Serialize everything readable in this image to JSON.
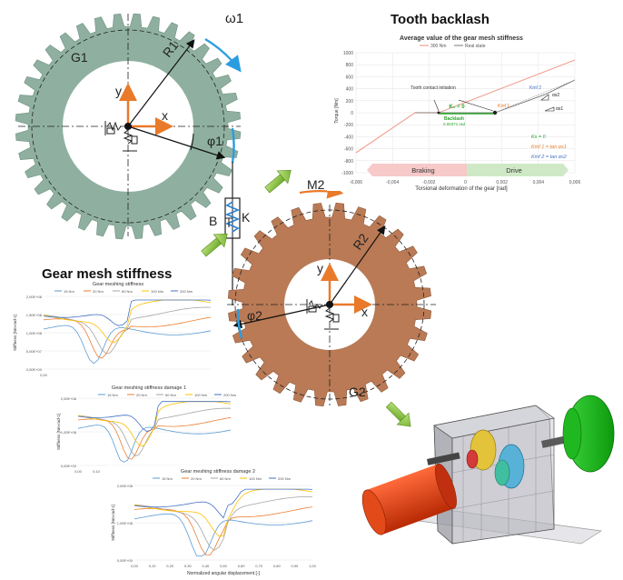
{
  "titles": {
    "tooth_backlash": "Tooth backlash",
    "gear_mesh_stiffness": "Gear mesh stiffness"
  },
  "gear1": {
    "name": "G1",
    "omega": "ω1",
    "radius": "R1",
    "phi": "φ1",
    "axis_x": "x",
    "axis_y": "y",
    "color": "#8fb0a0"
  },
  "gear2": {
    "name": "G2",
    "moment": "M2",
    "radius": "R2",
    "phi": "φ2",
    "axis_x": "x",
    "axis_y": "y",
    "color": "#b97a55"
  },
  "coupling": {
    "damping_label": "B",
    "stiffness_label": "K"
  },
  "backlash_chart": {
    "title": "Average value of the gear mesh stiffness",
    "legend": [
      "300 Nm",
      "Real state"
    ],
    "ylabel": "Torque [Nm]",
    "xlabel": "Torsional deformation of the gear [rad]",
    "yticks": [
      "1000",
      "800",
      "600",
      "400",
      "200",
      "0",
      "-200",
      "-400",
      "-600",
      "-800",
      "-1000"
    ],
    "xticks": [
      "-0,006",
      "-0,004",
      "-0,002",
      "0",
      "0,002",
      "0,004",
      "0,006"
    ],
    "annot_contact": "Tooth contact initiation",
    "annot_k0": "K₀ = 0",
    "annot_backlash": "Backlash",
    "annot_backlash_val": "0.00371 rad",
    "annot_kmf1": "Kmf 1",
    "annot_kmf2": "Kmf 2",
    "annot_alpha1": "αs1",
    "annot_alpha2": "αs2",
    "eq1": "Ks = 0",
    "eq2": "Kmf 1 = tan αs1",
    "eq3": "Kmf 2 = tan αs2",
    "braking": "Braking",
    "drive": "Drive"
  },
  "stiffness_charts": [
    {
      "title": "Gear meshing stiffness",
      "ylabel": "Stiffness [Nm·rad-1]",
      "legend": [
        "15 Nm",
        "20 Nm",
        "60 Nm",
        "100 Nm",
        "200 Nm"
      ],
      "yticks": [
        "2,00E+08",
        "1,50E+08",
        "1,00E+08",
        "5,00E+07",
        "0,00E+00"
      ],
      "x0": "0,00"
    },
    {
      "title": "Gear meshing stiffness damage 1",
      "ylabel": "Stiffness [Nm·rad-1]",
      "legend": [
        "15 Nm",
        "20 Nm",
        "60 Nm",
        "100 Nm",
        "200 Nm"
      ],
      "yticks": [
        "2,00E+08",
        "1,00E+08",
        "0,00E+00"
      ],
      "x0": "0,00",
      "x1": "0,10"
    },
    {
      "title": "Gear meshing stiffness damage 2",
      "ylabel": "Stiffness [Nm·rad-1]",
      "legend": [
        "15 Nm",
        "20 Nm",
        "60 Nm",
        "100 Nm",
        "200 Nm"
      ],
      "yticks": [
        "2,00E+08",
        "1,00E+08",
        "0,00E+00"
      ],
      "xticks": [
        "0,00",
        "0,10",
        "0,20",
        "0,30",
        "0,40",
        "0,50",
        "0,60",
        "0,70",
        "0,80",
        "0,90",
        "1,00"
      ],
      "xlabel": "Normalized angular displacement [-]"
    }
  ],
  "series_colors": [
    "#5b9bd5",
    "#ed7d31",
    "#a5a5a5",
    "#ffc000",
    "#4472c4"
  ]
}
